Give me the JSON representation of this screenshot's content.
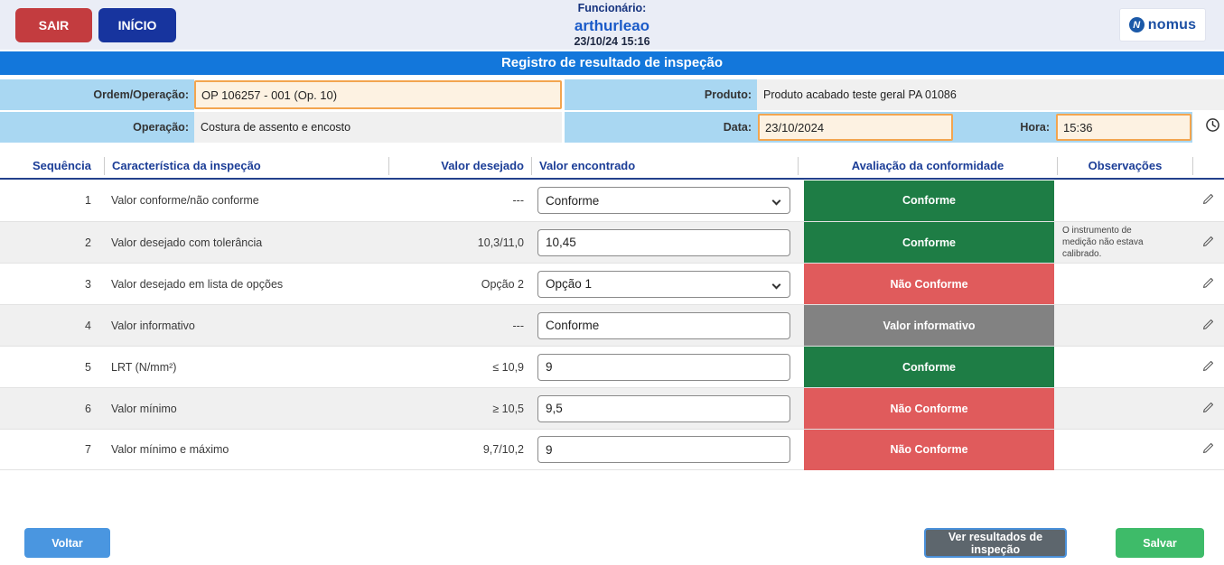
{
  "header": {
    "sair_label": "SAIR",
    "inicio_label": "INÍCIO",
    "funcionario_label": "Funcionário:",
    "funcionario_name": "arthurleao",
    "datetime": "23/10/24 15:16",
    "logo_initial": "N",
    "logo_text": "nomus"
  },
  "title_bar": {
    "title": "Registro de resultado de inspeção"
  },
  "form": {
    "ordem_label": "Ordem/Operação:",
    "ordem_value": "OP 106257 - 001 (Op. 10)",
    "produto_label": "Produto:",
    "produto_value": "Produto acabado teste geral PA 01086",
    "operacao_label": "Operação:",
    "operacao_value": "Costura de assento e encosto",
    "data_label": "Data:",
    "data_value": "23/10/2024",
    "hora_label": "Hora:",
    "hora_value": "15:36"
  },
  "table": {
    "headers": {
      "sequencia": "Sequência",
      "caracteristica": "Característica da inspeção",
      "valor_desejado": "Valor desejado",
      "valor_encontrado": "Valor encontrado",
      "avaliacao": "Avaliação da conformidade",
      "observacoes": "Observações"
    },
    "rows": [
      {
        "seq": "1",
        "caracteristica": "Valor conforme/não conforme",
        "valor_desejado": "---",
        "valor_encontrado": "Conforme",
        "input_type": "select",
        "avaliacao": "Conforme",
        "avaliacao_status": "conforme",
        "observacao": ""
      },
      {
        "seq": "2",
        "caracteristica": "Valor desejado com tolerância",
        "valor_desejado": "10,3/11,0",
        "valor_encontrado": "10,45",
        "input_type": "text",
        "avaliacao": "Conforme",
        "avaliacao_status": "conforme",
        "observacao": "O instrumento de medição não estava calibrado."
      },
      {
        "seq": "3",
        "caracteristica": "Valor desejado em lista de opções",
        "valor_desejado": "Opção 2",
        "valor_encontrado": "Opção 1",
        "input_type": "select",
        "avaliacao": "Não Conforme",
        "avaliacao_status": "nao-conforme",
        "observacao": ""
      },
      {
        "seq": "4",
        "caracteristica": "Valor informativo",
        "valor_desejado": "---",
        "valor_encontrado": "Conforme",
        "input_type": "text",
        "avaliacao": "Valor informativo",
        "avaliacao_status": "informativo",
        "observacao": ""
      },
      {
        "seq": "5",
        "caracteristica": "LRT (N/mm²)",
        "valor_desejado": "≤ 10,9",
        "valor_encontrado": "9",
        "input_type": "text",
        "avaliacao": "Conforme",
        "avaliacao_status": "conforme",
        "observacao": ""
      },
      {
        "seq": "6",
        "caracteristica": "Valor mínimo",
        "valor_desejado": "≥ 10,5",
        "valor_encontrado": "9,5",
        "input_type": "text",
        "avaliacao": "Não Conforme",
        "avaliacao_status": "nao-conforme",
        "observacao": ""
      },
      {
        "seq": "7",
        "caracteristica": "Valor mínimo e máximo",
        "valor_desejado": "9,7/10,2",
        "valor_encontrado": "9",
        "input_type": "text",
        "avaliacao": "Não Conforme",
        "avaliacao_status": "nao-conforme",
        "observacao": ""
      }
    ]
  },
  "footer": {
    "voltar_label": "Voltar",
    "ver_resultados_label": "Ver resultados de inspeção",
    "salvar_label": "Salvar"
  },
  "colors": {
    "badge_conforme": "#1e7d45",
    "badge_nao_conforme": "#e05b5c",
    "badge_informativo": "#828282",
    "title_bar_blue": "#1377db",
    "label_blue_bg": "#a9d7f2",
    "highlight_input_border": "#f3a54f",
    "highlight_input_bg": "#fdf2e2",
    "sair_red": "#c33c3f",
    "inicio_navy": "#17349e",
    "voltar_blue": "#4a96e0",
    "salvar_green": "#3ebb69",
    "ver_resultados_gray": "#5d666d"
  }
}
